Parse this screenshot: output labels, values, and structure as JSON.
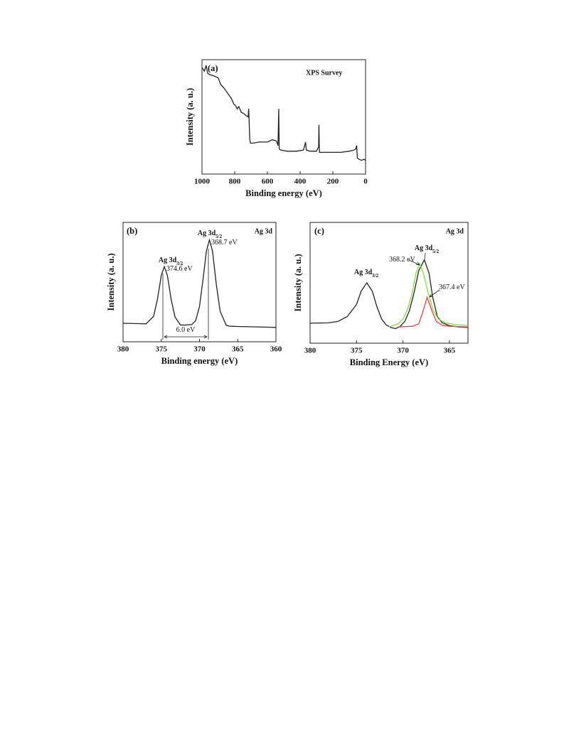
{
  "chart_data": [
    {
      "type": "line",
      "panel_label": "(a)",
      "title": "XPS Survey",
      "xlabel": "Binding energy (eV)",
      "ylabel": "Intensity (a. u.)",
      "xlim": [
        1000,
        0
      ],
      "xticks": [
        1000,
        800,
        600,
        400,
        200,
        0
      ],
      "ylim": [
        0,
        100
      ],
      "series": [
        {
          "color": "#222222",
          "x": [
            1000,
            985,
            975,
            965,
            955,
            930,
            900,
            885,
            870,
            855,
            840,
            820,
            805,
            795,
            785,
            775,
            760,
            745,
            730,
            718,
            715,
            712,
            708,
            703,
            690,
            650,
            600,
            570,
            545,
            535,
            531,
            528,
            520,
            480,
            420,
            380,
            370,
            367,
            362,
            340,
            300,
            287,
            285,
            282,
            250,
            200,
            150,
            100,
            70,
            60,
            55,
            50,
            40,
            25,
            10,
            0
          ],
          "values": [
            93,
            90,
            95,
            88,
            87,
            86,
            84,
            78,
            76,
            73,
            70,
            66,
            61,
            60,
            57,
            59,
            54,
            53,
            51,
            50,
            57,
            48,
            30,
            27,
            27,
            28,
            28,
            30,
            29,
            25,
            57,
            22,
            21,
            20,
            20,
            21,
            26,
            28,
            21,
            20,
            20,
            24,
            43,
            19,
            19,
            19,
            19,
            20,
            21,
            22,
            25,
            14,
            13,
            12,
            13,
            12
          ]
        }
      ]
    },
    {
      "type": "line",
      "panel_label": "(b)",
      "title": "Ag 3d",
      "xlabel": "Binding energy (eV)",
      "ylabel": "Intensity (a. u.)",
      "xlim": [
        380,
        360
      ],
      "xticks": [
        380,
        375,
        370,
        365,
        360
      ],
      "ylim": [
        0,
        100
      ],
      "annotations": [
        {
          "text": "Ag 3d",
          "sub": "3/2"
        },
        {
          "text": "374.6 eV"
        },
        {
          "text": "Ag 3d",
          "sub": "5/2"
        },
        {
          "text": "368.7 eV"
        },
        {
          "text": "6.0 eV"
        }
      ],
      "series": [
        {
          "color": "#222222",
          "x": [
            380,
            378,
            377,
            376,
            375.5,
            375,
            374.6,
            374.2,
            373.7,
            373.2,
            372.5,
            372,
            371,
            370.5,
            370,
            369.5,
            369.1,
            368.7,
            368.3,
            367.8,
            367.3,
            366.5,
            366,
            365,
            363,
            360
          ],
          "values": [
            15.5,
            15.2,
            15.0,
            21.3,
            35.7,
            55.6,
            63.0,
            55.4,
            35.3,
            20.7,
            14.1,
            14.0,
            14.4,
            17.7,
            29.5,
            54.4,
            76.0,
            85.3,
            76.0,
            48.2,
            25.6,
            13.8,
            13.0,
            12.8,
            12.5,
            12.0
          ]
        }
      ]
    },
    {
      "type": "line",
      "panel_label": "(c)",
      "title": "Ag 3d",
      "xlabel": "Binding Energy (eV)",
      "ylabel": "Intensity (a. u.)",
      "xlim": [
        380,
        363
      ],
      "xticks": [
        380,
        375,
        370,
        365
      ],
      "ylim": [
        0,
        100
      ],
      "annotations": [
        {
          "text": "Ag 3d",
          "sub": "3/2"
        },
        {
          "text": "Ag 3d",
          "sub": "5/2"
        },
        {
          "text": "368.2 eV"
        },
        {
          "text": "367.4 eV"
        }
      ],
      "series": [
        {
          "color": "#222222",
          "x": [
            380,
            378,
            377,
            376,
            375,
            374.5,
            373.9,
            373.3,
            372.8,
            372.3,
            371.8,
            371.3,
            370.8,
            370.3,
            369.8,
            369.3,
            368.8,
            368.3,
            367.7,
            367.2,
            366.8,
            366.3,
            365.8,
            365,
            364,
            363
          ],
          "values": [
            16.5,
            16.8,
            18,
            22,
            32,
            43,
            50,
            43,
            30,
            20,
            15,
            13,
            12,
            14,
            18,
            27,
            42,
            60,
            69,
            58,
            38,
            22,
            17,
            14.5,
            13.5,
            13
          ]
        },
        {
          "color": "#7fe03a",
          "x": [
            371.5,
            370.5,
            370,
            369.5,
            369,
            368.6,
            368.2,
            367.8,
            367.3,
            366.8,
            366.2,
            365.5,
            364.5,
            363
          ],
          "values": [
            13.5,
            16,
            20,
            28,
            42,
            58,
            66,
            58,
            42,
            28,
            20,
            17,
            15.5,
            14.7
          ]
        },
        {
          "color": "#f04040",
          "x": [
            370.5,
            369,
            368.3,
            367.9,
            367.4,
            366.9,
            366.4,
            365.8,
            365,
            363
          ],
          "values": [
            13.5,
            14,
            16,
            25,
            38,
            27,
            18,
            15,
            14,
            13.5
          ]
        }
      ]
    }
  ]
}
